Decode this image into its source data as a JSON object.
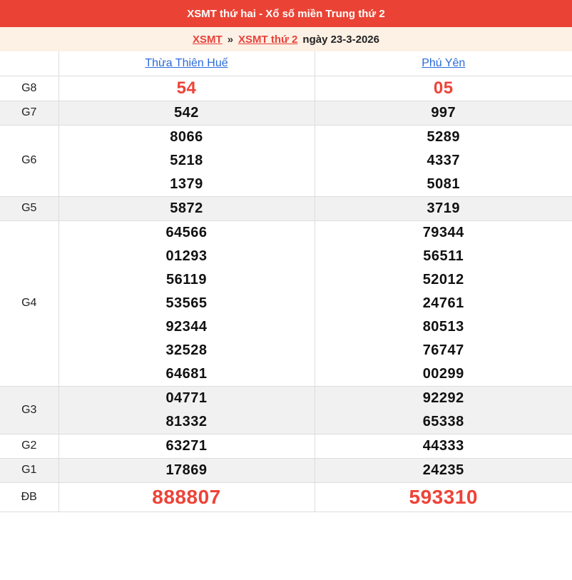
{
  "header": {
    "title": "XSMT thứ hai - Xổ số miền Trung thứ 2"
  },
  "breadcrumb": {
    "link1": "XSMT",
    "separator": "»",
    "link2": "XSMT thứ 2",
    "date_text": "ngày 23-3-2026"
  },
  "table": {
    "provinces": [
      "Thừa Thiên Huế",
      "Phú Yên"
    ],
    "rows": [
      {
        "prize": "G8",
        "highlight": true,
        "special": false,
        "values": [
          [
            "54"
          ],
          [
            "05"
          ]
        ]
      },
      {
        "prize": "G7",
        "highlight": false,
        "special": false,
        "values": [
          [
            "542"
          ],
          [
            "997"
          ]
        ]
      },
      {
        "prize": "G6",
        "highlight": false,
        "special": false,
        "values": [
          [
            "8066",
            "5218",
            "1379"
          ],
          [
            "5289",
            "4337",
            "5081"
          ]
        ]
      },
      {
        "prize": "G5",
        "highlight": false,
        "special": false,
        "values": [
          [
            "5872"
          ],
          [
            "3719"
          ]
        ]
      },
      {
        "prize": "G4",
        "highlight": false,
        "special": false,
        "values": [
          [
            "64566",
            "01293",
            "56119",
            "53565",
            "92344",
            "32528",
            "64681"
          ],
          [
            "79344",
            "56511",
            "52012",
            "24761",
            "80513",
            "76747",
            "00299"
          ]
        ]
      },
      {
        "prize": "G3",
        "highlight": false,
        "special": false,
        "values": [
          [
            "04771",
            "81332"
          ],
          [
            "92292",
            "65338"
          ]
        ]
      },
      {
        "prize": "G2",
        "highlight": false,
        "special": false,
        "values": [
          [
            "63271"
          ],
          [
            "44333"
          ]
        ]
      },
      {
        "prize": "G1",
        "highlight": false,
        "special": false,
        "values": [
          [
            "17869"
          ],
          [
            "24235"
          ]
        ]
      },
      {
        "prize": "ĐB",
        "highlight": true,
        "special": true,
        "values": [
          [
            "888807"
          ],
          [
            "593310"
          ]
        ]
      }
    ]
  },
  "colors": {
    "red_bar": "#ea4335",
    "red_link": "#e8413a",
    "red_number": "#ee4338",
    "blue_link": "#2a6bd9",
    "cream_bg": "#fdf0e4",
    "gray_row": "#f1f1f2",
    "border": "#dddddd"
  }
}
